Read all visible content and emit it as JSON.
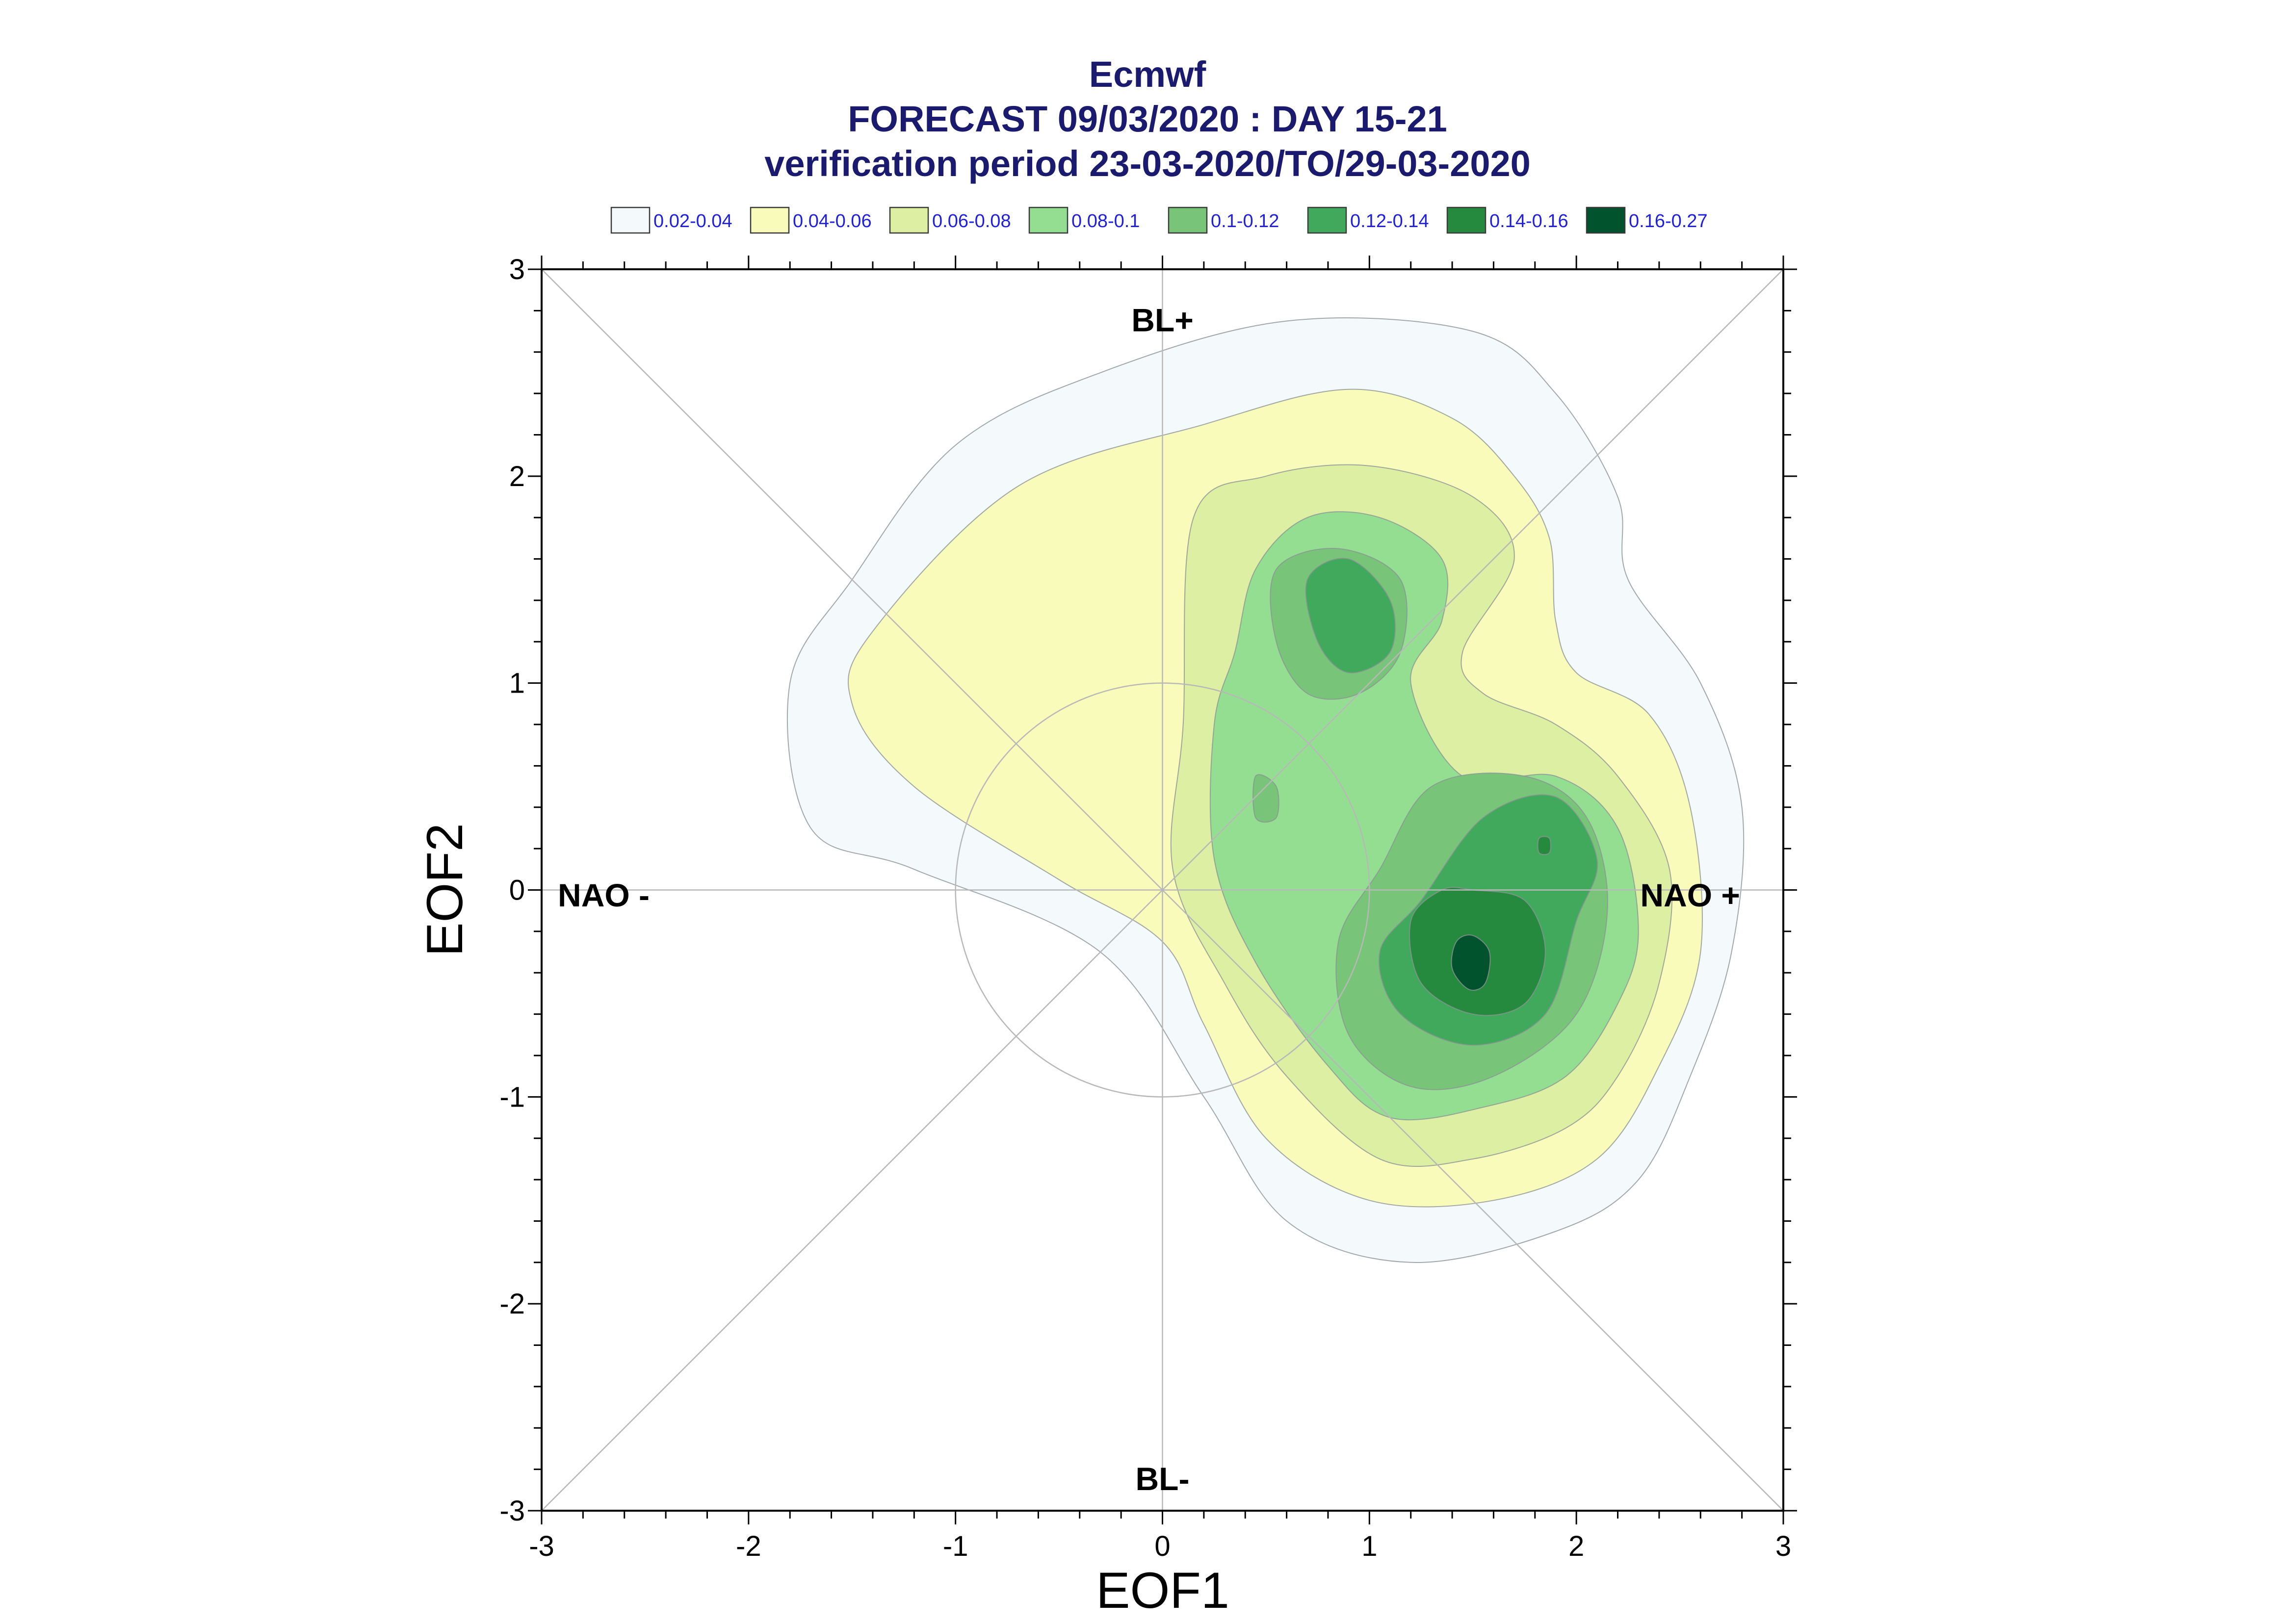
{
  "chart_data": {
    "type": "contour",
    "title": "Ecmwf",
    "subtitle_1": "FORECAST 09/03/2020 : DAY 15-21",
    "subtitle_2": "verification period 23-03-2020/TO/29-03-2020",
    "xlabel": "EOF1",
    "ylabel": "EOF2",
    "xlim": [
      -3,
      3
    ],
    "ylim": [
      -3,
      3
    ],
    "x_ticks": [
      "-3",
      "-2",
      "-1",
      "0",
      "1",
      "2",
      "3"
    ],
    "y_ticks": [
      "3",
      "2",
      "1",
      "0",
      "-1",
      "-2",
      "-3"
    ],
    "x_tick_values": [
      -3,
      -2,
      -1,
      0,
      1,
      2,
      3
    ],
    "y_tick_values": [
      3,
      2,
      1,
      0,
      -1,
      -2,
      -3
    ],
    "grid": false,
    "reference_circle_radius": 1,
    "legend_position": "top",
    "legend": [
      {
        "label": "0.02-0.04",
        "color": "#f4f9fb"
      },
      {
        "label": "0.04-0.06",
        "color": "#f8fbb9"
      },
      {
        "label": "0.06-0.08",
        "color": "#dcefa2"
      },
      {
        "label": "0.08-0.1",
        "color": "#93de90"
      },
      {
        "label": "0.1-0.12",
        "color": "#78c478"
      },
      {
        "label": "0.12-0.14",
        "color": "#40a95c"
      },
      {
        "label": "0.14-0.16",
        "color": "#258a3e"
      },
      {
        "label": "0.16-0.27",
        "color": "#00532d"
      }
    ],
    "regime_labels": [
      {
        "label": "BL+",
        "x": 0,
        "y": 2.7
      },
      {
        "label": "BL-",
        "x": 0,
        "y": -2.9
      },
      {
        "label": "NAO -",
        "x": -2.7,
        "y": -0.08
      },
      {
        "label": "NAO +",
        "x": 2.55,
        "y": -0.08
      }
    ],
    "contour_levels": [
      {
        "range": "0.02-0.04",
        "color": "#f4f9fb",
        "polygons": [
          [
            [
              -1.0,
              2.15
            ],
            [
              -0.3,
              2.5
            ],
            [
              0.6,
              2.75
            ],
            [
              1.5,
              2.7
            ],
            [
              1.9,
              2.4
            ],
            [
              2.2,
              1.9
            ],
            [
              2.25,
              1.5
            ],
            [
              2.6,
              1.0
            ],
            [
              2.8,
              0.4
            ],
            [
              2.75,
              -0.3
            ],
            [
              2.55,
              -0.9
            ],
            [
              2.3,
              -1.4
            ],
            [
              1.9,
              -1.65
            ],
            [
              1.2,
              -1.8
            ],
            [
              0.6,
              -1.6
            ],
            [
              0.2,
              -1.0
            ],
            [
              -0.3,
              -0.3
            ],
            [
              -1.2,
              0.1
            ],
            [
              -1.7,
              0.3
            ],
            [
              -1.8,
              1.0
            ],
            [
              -1.5,
              1.5
            ]
          ]
        ]
      },
      {
        "range": "0.04-0.06",
        "color": "#f8fbb9",
        "polygons": [
          [
            [
              -1.4,
              1.25
            ],
            [
              -0.7,
              1.95
            ],
            [
              0.2,
              2.25
            ],
            [
              0.9,
              2.42
            ],
            [
              1.4,
              2.28
            ],
            [
              1.7,
              2.0
            ],
            [
              1.87,
              1.7
            ],
            [
              1.9,
              1.3
            ],
            [
              2.0,
              1.05
            ],
            [
              2.35,
              0.85
            ],
            [
              2.55,
              0.4
            ],
            [
              2.6,
              -0.3
            ],
            [
              2.4,
              -0.85
            ],
            [
              2.1,
              -1.3
            ],
            [
              1.6,
              -1.5
            ],
            [
              1.0,
              -1.5
            ],
            [
              0.5,
              -1.2
            ],
            [
              0.2,
              -0.65
            ],
            [
              0.0,
              -0.25
            ],
            [
              -0.5,
              0.05
            ],
            [
              -1.2,
              0.5
            ],
            [
              -1.5,
              0.9
            ]
          ]
        ]
      },
      {
        "range": "0.06-0.08",
        "color": "#dcefa2",
        "polygons": [
          [
            [
              0.15,
              1.8
            ],
            [
              0.5,
              2.0
            ],
            [
              1.0,
              2.05
            ],
            [
              1.5,
              1.9
            ],
            [
              1.7,
              1.6
            ],
            [
              1.45,
              1.15
            ],
            [
              1.55,
              0.95
            ],
            [
              1.9,
              0.8
            ],
            [
              2.2,
              0.55
            ],
            [
              2.45,
              0.1
            ],
            [
              2.4,
              -0.45
            ],
            [
              2.2,
              -0.9
            ],
            [
              1.95,
              -1.15
            ],
            [
              1.5,
              -1.3
            ],
            [
              1.05,
              -1.3
            ],
            [
              0.6,
              -0.9
            ],
            [
              0.3,
              -0.45
            ],
            [
              0.05,
              0.1
            ],
            [
              0.1,
              0.8
            ]
          ]
        ]
      },
      {
        "range": "0.08-0.1",
        "color": "#93de90",
        "polygons": [
          [
            [
              0.45,
              1.55
            ],
            [
              0.7,
              1.8
            ],
            [
              1.05,
              1.8
            ],
            [
              1.35,
              1.6
            ],
            [
              1.35,
              1.3
            ],
            [
              1.2,
              1.0
            ],
            [
              1.45,
              0.55
            ],
            [
              1.9,
              0.55
            ],
            [
              2.2,
              0.3
            ],
            [
              2.3,
              -0.2
            ],
            [
              2.2,
              -0.55
            ],
            [
              1.95,
              -0.9
            ],
            [
              1.55,
              -1.05
            ],
            [
              1.1,
              -1.1
            ],
            [
              0.8,
              -0.85
            ],
            [
              0.45,
              -0.35
            ],
            [
              0.25,
              0.15
            ],
            [
              0.25,
              0.8
            ],
            [
              0.35,
              1.15
            ]
          ]
        ]
      },
      {
        "range": "0.1-0.12",
        "color": "#78c478",
        "polygons": [
          [
            [
              0.55,
              1.55
            ],
            [
              0.85,
              1.65
            ],
            [
              1.15,
              1.5
            ],
            [
              1.15,
              1.15
            ],
            [
              0.95,
              0.95
            ],
            [
              0.7,
              0.95
            ],
            [
              0.55,
              1.2
            ]
          ],
          [
            [
              0.45,
              0.55
            ],
            [
              0.55,
              0.5
            ],
            [
              0.55,
              0.35
            ],
            [
              0.45,
              0.35
            ]
          ],
          [
            [
              1.3,
              0.5
            ],
            [
              1.75,
              0.55
            ],
            [
              2.05,
              0.35
            ],
            [
              2.15,
              -0.1
            ],
            [
              2.0,
              -0.6
            ],
            [
              1.6,
              -0.9
            ],
            [
              1.2,
              -0.95
            ],
            [
              0.9,
              -0.7
            ],
            [
              0.85,
              -0.25
            ],
            [
              1.05,
              0.1
            ]
          ]
        ]
      },
      {
        "range": "0.12-0.14",
        "color": "#40a95c",
        "polygons": [
          [
            [
              0.7,
              1.5
            ],
            [
              0.9,
              1.6
            ],
            [
              1.1,
              1.4
            ],
            [
              1.1,
              1.15
            ],
            [
              0.9,
              1.05
            ],
            [
              0.75,
              1.2
            ]
          ],
          [
            [
              1.55,
              0.35
            ],
            [
              1.9,
              0.45
            ],
            [
              2.1,
              0.15
            ],
            [
              2.0,
              -0.15
            ],
            [
              1.85,
              -0.6
            ],
            [
              1.5,
              -0.75
            ],
            [
              1.15,
              -0.6
            ],
            [
              1.05,
              -0.3
            ],
            [
              1.25,
              -0.05
            ]
          ]
        ]
      },
      {
        "range": "0.14-0.16",
        "color": "#258a3e",
        "polygons": [
          [
            [
              1.5,
              0.0
            ],
            [
              1.75,
              -0.05
            ],
            [
              1.85,
              -0.3
            ],
            [
              1.75,
              -0.55
            ],
            [
              1.5,
              -0.6
            ],
            [
              1.25,
              -0.45
            ],
            [
              1.2,
              -0.15
            ],
            [
              1.35,
              0.0
            ]
          ],
          [
            [
              1.82,
              0.25
            ],
            [
              1.87,
              0.25
            ],
            [
              1.87,
              0.18
            ],
            [
              1.82,
              0.18
            ]
          ]
        ]
      },
      {
        "range": "0.16-0.27",
        "color": "#00532d",
        "polygons": [
          [
            [
              1.5,
              -0.22
            ],
            [
              1.58,
              -0.3
            ],
            [
              1.56,
              -0.45
            ],
            [
              1.48,
              -0.48
            ],
            [
              1.4,
              -0.38
            ],
            [
              1.42,
              -0.25
            ]
          ]
        ]
      }
    ]
  }
}
